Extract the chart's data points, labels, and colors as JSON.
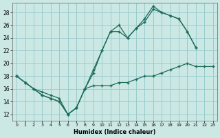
{
  "xlabel": "Humidex (Indice chaleur)",
  "bg_color": "#cce8e4",
  "grid_color": "#99cccc",
  "line_color": "#1a6b5a",
  "xlim": [
    -0.5,
    23.5
  ],
  "ylim": [
    11.0,
    29.5
  ],
  "xticks": [
    0,
    1,
    2,
    3,
    4,
    5,
    6,
    7,
    8,
    9,
    10,
    11,
    12,
    13,
    14,
    15,
    16,
    17,
    18,
    19,
    20,
    21,
    22,
    23
  ],
  "yticks": [
    12,
    14,
    16,
    18,
    20,
    22,
    24,
    26,
    28
  ],
  "series": [
    {
      "x": [
        0,
        1,
        2,
        3,
        4,
        5,
        6,
        7,
        8,
        9,
        10,
        11,
        12,
        13,
        14,
        15,
        16,
        17,
        18,
        19,
        20,
        21
      ],
      "y": [
        18,
        17,
        16,
        15,
        14.5,
        14,
        12,
        13,
        16,
        19,
        22,
        25,
        26,
        24,
        25.5,
        27,
        29,
        28,
        27.5,
        27,
        25,
        22.5
      ]
    },
    {
      "x": [
        0,
        1,
        2,
        3,
        4,
        5,
        6,
        7,
        8,
        9,
        10,
        11,
        12,
        13,
        14,
        15,
        16,
        17,
        18,
        19,
        20,
        21
      ],
      "y": [
        18,
        17,
        16,
        15,
        14.5,
        14,
        12,
        13,
        16,
        18.5,
        22,
        25,
        25,
        24,
        25.5,
        26.5,
        28.5,
        28,
        27.5,
        27,
        25,
        22.5
      ]
    },
    {
      "x": [
        0,
        1,
        2,
        3,
        4,
        5,
        6,
        7,
        8,
        9,
        10,
        11,
        12,
        13,
        14,
        15,
        16,
        17,
        18,
        19,
        20,
        21,
        22,
        23
      ],
      "y": [
        18,
        17,
        16,
        15.5,
        15,
        14.5,
        12,
        13,
        16,
        16.5,
        16.5,
        16.5,
        17,
        17,
        17.5,
        18,
        18,
        18.5,
        19,
        19.5,
        20,
        19.5,
        19.5,
        19.5
      ]
    }
  ]
}
